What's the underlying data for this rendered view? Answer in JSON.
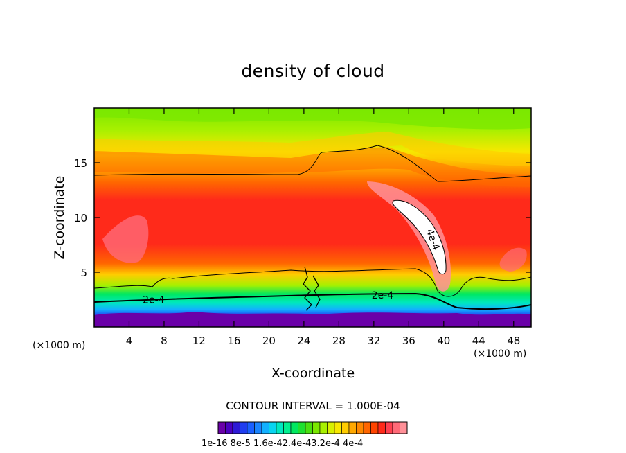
{
  "chart_data": {
    "type": "heatmap",
    "title": "density of cloud",
    "xlabel": "X-coordinate",
    "ylabel": "Z-coordinate",
    "x_unit_left": "(×1000 m)",
    "x_unit_right": "(×1000 m)",
    "xlim": [
      0,
      50
    ],
    "ylim": [
      0,
      20
    ],
    "x_ticks": [
      4,
      8,
      12,
      16,
      20,
      24,
      28,
      32,
      36,
      40,
      44,
      48
    ],
    "y_ticks": [
      5,
      10,
      15
    ],
    "contour_interval_text": "CONTOUR INTERVAL = 1.000E-04",
    "contour_labels": [
      {
        "text": "2e-4",
        "x": 6.8,
        "z": 2.5
      },
      {
        "text": "2e-4",
        "x": 33.0,
        "z": 2.9
      },
      {
        "text": "4e-4",
        "x": 38.8,
        "z": 8.0
      }
    ],
    "colorbar": {
      "min": 1e-16,
      "max": 0.00044,
      "labels": [
        "1e-16",
        "8e-5",
        "1.6e-4",
        "2.4e-4",
        "3.2e-4",
        "4e-4"
      ],
      "labels_text": "1e-16 8e-5 1.6e-42.4e-43.2e-4 4e-4",
      "colors": [
        "#6a00a8",
        "#4b00c0",
        "#2e1ad6",
        "#1f3df0",
        "#1a60ff",
        "#1a85ff",
        "#12b0ff",
        "#08d4f0",
        "#00e8c0",
        "#00f090",
        "#00e860",
        "#1ee030",
        "#4ae010",
        "#7ae800",
        "#a8f000",
        "#d8f000",
        "#f8e800",
        "#ffcc00",
        "#ffa800",
        "#ff8800",
        "#ff6600",
        "#ff4400",
        "#ff2a1a",
        "#ff4050",
        "#ff6a78",
        "#ff9098"
      ]
    }
  }
}
